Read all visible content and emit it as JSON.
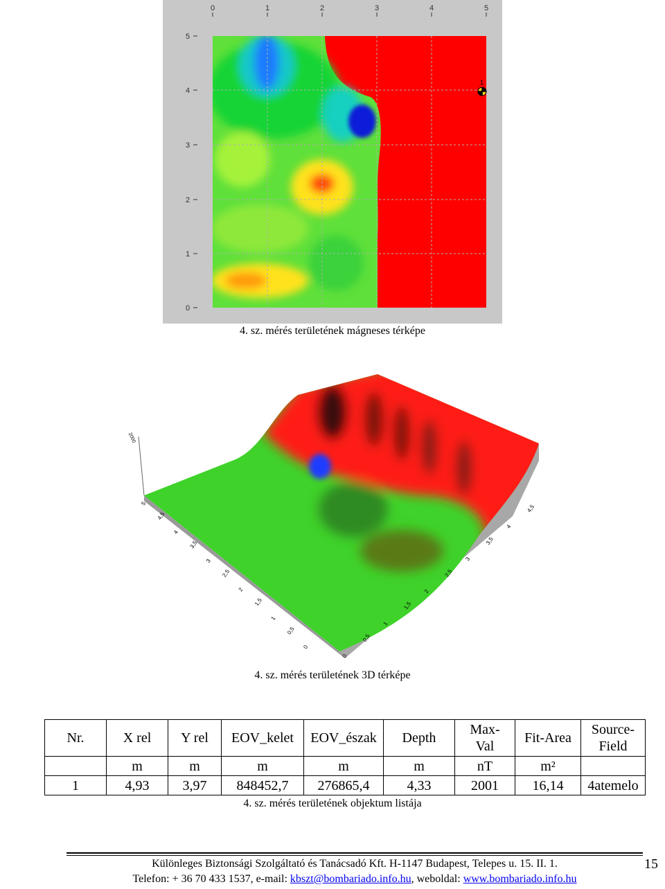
{
  "map2d": {
    "x_ticks": [
      "0",
      "1",
      "2",
      "3",
      "4",
      "5"
    ],
    "y_ticks": [
      "0",
      "1",
      "2",
      "3",
      "4",
      "5"
    ],
    "marker_label": "1",
    "caption": "4. sz. mérés területének mágneses térképe"
  },
  "map3d": {
    "left_axis_ticks": [
      "0",
      "0,5",
      "1",
      "1,5",
      "2",
      "2,5",
      "3",
      "3,5",
      "4",
      "4,5",
      "5"
    ],
    "right_axis_ticks": [
      "0",
      "0,5",
      "1",
      "1,5",
      "2",
      "2,5",
      "3",
      "3,5",
      "4",
      "4,5"
    ],
    "vertical_axis_label": "2000",
    "caption": "4. sz. mérés területének 3D térképe"
  },
  "table": {
    "headers": [
      [
        "Nr."
      ],
      [
        "X rel"
      ],
      [
        "Y rel"
      ],
      [
        "EOV_kelet"
      ],
      [
        "EOV_észak"
      ],
      [
        "Depth"
      ],
      [
        "Max-",
        "Val"
      ],
      [
        "Fit-Area"
      ],
      [
        "Source-",
        "Field"
      ]
    ],
    "units": [
      "",
      "m",
      "m",
      "m",
      "m",
      "m",
      "nT",
      "m²",
      ""
    ],
    "rows": [
      [
        "1",
        "4,93",
        "3,97",
        "848452,7",
        "276865,4",
        "4,33",
        "2001",
        "16,14",
        "4atemelo"
      ]
    ],
    "caption": "4. sz. mérés területének objektum listája"
  },
  "footer": {
    "line1": "Különleges Biztonsági Szolgáltató és Tanácsadó Kft. H-1147 Budapest, Telepes u. 15. II. 1.",
    "line2_prefix": "Telefon: + 36 70 433 1537, e-mail: ",
    "email": "kbszt@bombariado.info.hu",
    "line2_middle": ", weboldal: ",
    "website": "www.bombariado.info.hu",
    "page_number": "15"
  },
  "colors": {
    "map_red": "#ff0000",
    "map_green": "#1dd62a",
    "map_blue": "#1a3cff",
    "frame_gray": "#c8c8c8",
    "link_blue": "#0000ee"
  }
}
